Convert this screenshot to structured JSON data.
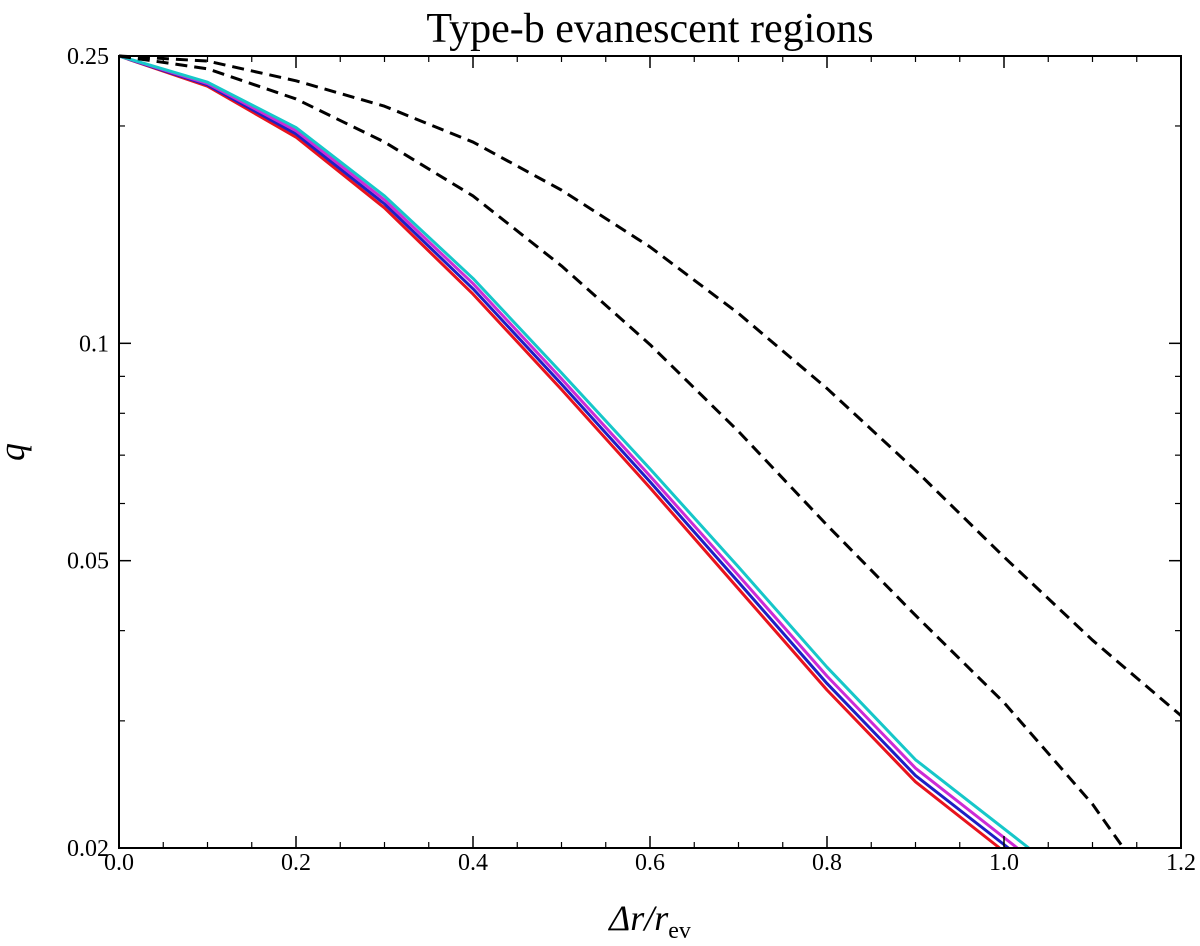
{
  "chart_data": {
    "type": "line",
    "title": "Type-b evanescent regions",
    "xlabel": {
      "main": "Δr/r",
      "sub": "ev"
    },
    "ylabel": "q",
    "xlim": [
      0.0,
      1.2
    ],
    "ylim": [
      0.02,
      0.25
    ],
    "yscale": "log",
    "grid": false,
    "legend": "none",
    "x_ticks": [
      {
        "value": 0.0,
        "label": "0.0"
      },
      {
        "value": 0.2,
        "label": "0.2"
      },
      {
        "value": 0.4,
        "label": "0.4"
      },
      {
        "value": 0.6,
        "label": "0.6"
      },
      {
        "value": 0.8,
        "label": "0.8"
      },
      {
        "value": 1.0,
        "label": "1.0"
      },
      {
        "value": 1.2,
        "label": "1.2"
      }
    ],
    "y_ticks": [
      {
        "value": 0.25,
        "label": "0.25"
      },
      {
        "value": 0.1,
        "label": "0.1"
      },
      {
        "value": 0.05,
        "label": "0.05"
      },
      {
        "value": 0.02,
        "label": "0.02"
      }
    ],
    "series": [
      {
        "color": "#e8131d",
        "style": "solid",
        "x": [
          0.0,
          0.1,
          0.2,
          0.3,
          0.4,
          0.5,
          0.6,
          0.7,
          0.8,
          0.9,
          0.995
        ],
        "y": [
          0.25,
          0.227,
          0.193,
          0.154,
          0.117,
          0.0863,
          0.0631,
          0.0457,
          0.0331,
          0.0247,
          0.02
        ]
      },
      {
        "color": "#1d1fc4",
        "style": "solid",
        "x": [
          0.0,
          0.1,
          0.2,
          0.3,
          0.4,
          0.5,
          0.6,
          0.7,
          0.8,
          0.9,
          1.005
        ],
        "y": [
          0.25,
          0.228,
          0.195,
          0.156,
          0.119,
          0.0878,
          0.0643,
          0.0467,
          0.0338,
          0.0252,
          0.02
        ]
      },
      {
        "color": "#cc2bd6",
        "style": "solid",
        "x": [
          0.0,
          0.1,
          0.2,
          0.3,
          0.4,
          0.5,
          0.6,
          0.7,
          0.8,
          0.9,
          1.015
        ],
        "y": [
          0.25,
          0.229,
          0.197,
          0.158,
          0.121,
          0.0893,
          0.0655,
          0.0477,
          0.0346,
          0.0258,
          0.02
        ]
      },
      {
        "color": "#16c7c9",
        "style": "solid",
        "x": [
          0.0,
          0.1,
          0.2,
          0.3,
          0.4,
          0.5,
          0.6,
          0.7,
          0.8,
          0.9,
          1.028
        ],
        "y": [
          0.25,
          0.23,
          0.199,
          0.16,
          0.123,
          0.091,
          0.067,
          0.049,
          0.0356,
          0.0265,
          0.02
        ]
      },
      {
        "color": "#000000",
        "style": "dashed",
        "x": [
          0.0,
          0.1,
          0.2,
          0.3,
          0.4,
          0.5,
          0.6,
          0.7,
          0.8,
          0.9,
          1.0,
          1.1,
          1.135
        ],
        "y": [
          0.25,
          0.24,
          0.218,
          0.19,
          0.16,
          0.128,
          0.0996,
          0.0755,
          0.056,
          0.042,
          0.0318,
          0.023,
          0.02
        ]
      },
      {
        "color": "#000000",
        "style": "dashed",
        "x": [
          0.0,
          0.1,
          0.2,
          0.3,
          0.4,
          0.5,
          0.6,
          0.7,
          0.8,
          0.9,
          1.0,
          1.1,
          1.2
        ],
        "y": [
          0.25,
          0.246,
          0.231,
          0.213,
          0.19,
          0.163,
          0.136,
          0.11,
          0.0866,
          0.0667,
          0.0506,
          0.0388,
          0.0305
        ]
      }
    ]
  }
}
